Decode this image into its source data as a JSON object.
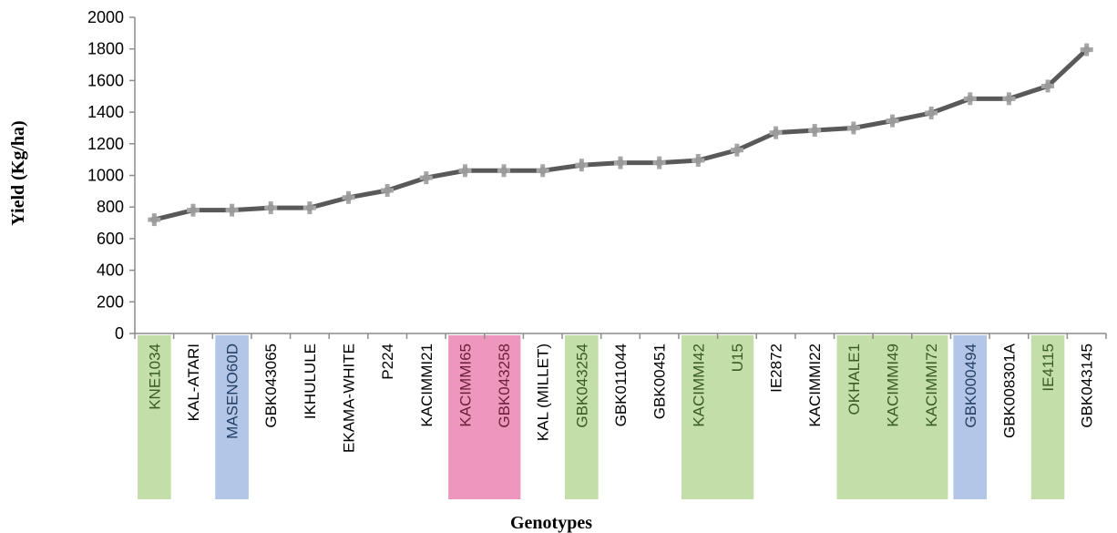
{
  "chart_data": {
    "type": "line",
    "title": "",
    "xlabel": "Genotypes",
    "ylabel": "Yield (Kg/ha)",
    "ylim": [
      0,
      2000
    ],
    "yticks": [
      0,
      200,
      400,
      600,
      800,
      1000,
      1200,
      1400,
      1600,
      1800,
      2000
    ],
    "grid": false,
    "legend": "none",
    "categories": [
      "KNE1034",
      "KAL-ATARI",
      "MASENO60D",
      "GBK043065",
      "IKHULULE",
      "EKAMA-WHITE",
      "P224",
      "KACIMMI21",
      "KACIMMI65",
      "GBK043258",
      "KAL (MILLET)",
      "GBK043254",
      "GBK011044",
      "GBK00451",
      "KACIMMI42",
      "U15",
      "IE2872",
      "KACIMMI22",
      "OKHALE1",
      "KACIMMI49",
      "KACIMMI72",
      "GBK000494",
      "GBK008301A",
      "IE4115",
      "GBK043145"
    ],
    "series": [
      {
        "values": [
          720,
          780,
          780,
          795,
          795,
          860,
          905,
          985,
          1030,
          1030,
          1030,
          1065,
          1080,
          1080,
          1095,
          1160,
          1270,
          1285,
          1300,
          1345,
          1395,
          1485,
          1485,
          1565,
          1795
        ],
        "color": "#595959"
      }
    ],
    "highlight_colors": {
      "green": "#c3dea9",
      "blue": "#b3c6e7",
      "pink": "#ee97bd"
    },
    "highlights": [
      {
        "from": "KNE1034",
        "to": "KNE1034",
        "color": "green"
      },
      {
        "from": "MASENO60D",
        "to": "MASENO60D",
        "color": "blue"
      },
      {
        "from": "KACIMMI65",
        "to": "GBK043258",
        "color": "pink"
      },
      {
        "from": "GBK043254",
        "to": "GBK043254",
        "color": "green"
      },
      {
        "from": "KACIMMI42",
        "to": "U15",
        "color": "green"
      },
      {
        "from": "OKHALE1",
        "to": "KACIMMI72",
        "color": "green"
      },
      {
        "from": "GBK000494",
        "to": "GBK000494",
        "color": "blue"
      },
      {
        "from": "IE4115",
        "to": "IE4115",
        "color": "green"
      }
    ],
    "label_colors": {
      "green": "#3a5a24",
      "blue": "#243f66",
      "pink": "#6b1f3a",
      "none": "#000000"
    }
  }
}
